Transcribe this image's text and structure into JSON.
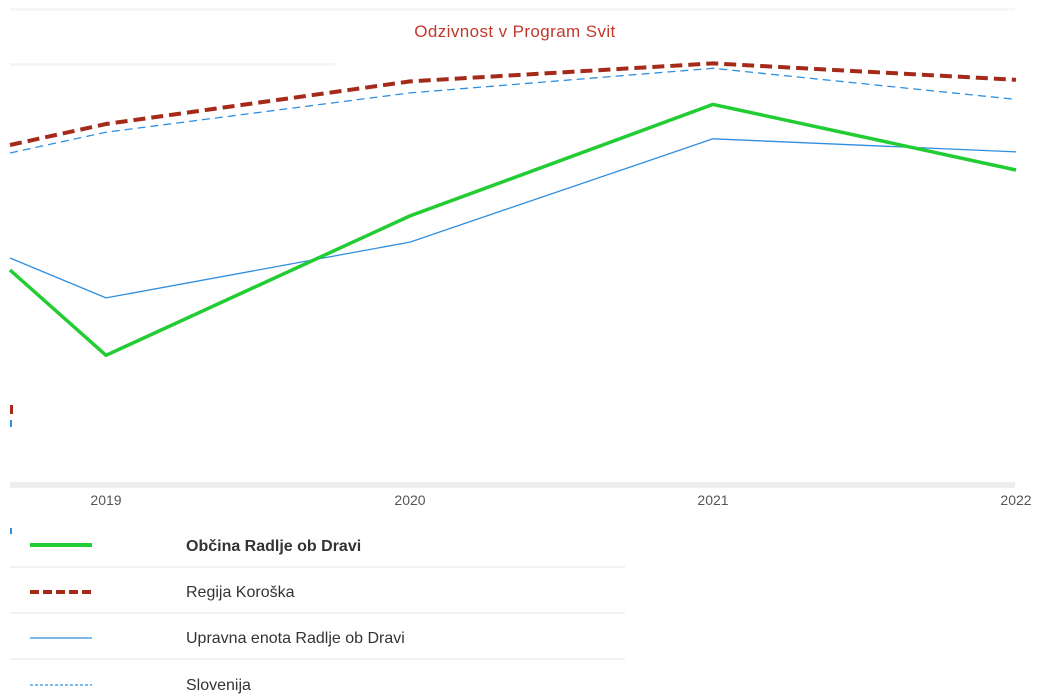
{
  "chart_data": {
    "type": "line",
    "title": "Odzivnost v Program Svit",
    "categories": [
      "2019",
      "2020",
      "2021",
      "2022"
    ],
    "ylim": [
      50,
      75
    ],
    "grid": false,
    "legend_position": "bottom",
    "series": [
      {
        "name": "Občina Radlje ob Dravi",
        "values": [
          57.3,
          65.8,
          72.6,
          68.6
        ],
        "color": "#22cc33",
        "style": "solid-thick"
      },
      {
        "name": "Regija Koroška",
        "values": [
          71.4,
          74.0,
          75.1,
          74.1
        ],
        "color": "#a52a1a",
        "style": "dashed-thick"
      },
      {
        "name": "Upravna enota Radlje ob Dravi",
        "values": [
          60.8,
          64.2,
          70.5,
          69.7
        ],
        "color": "#2f8fdf",
        "style": "solid-thin"
      },
      {
        "name": "Slovenija",
        "values": [
          70.9,
          73.3,
          74.8,
          72.9
        ],
        "color": "#2f8fdf",
        "style": "dashed-thin"
      }
    ]
  }
}
